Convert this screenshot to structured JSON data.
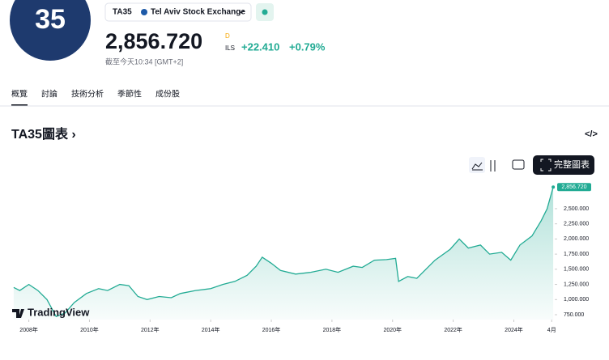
{
  "header": {
    "logo": "35",
    "symbol": "TA35",
    "exchange": "Tel Aviv Stock Exchange",
    "price": "2,856.720",
    "price_flag": "D",
    "currency": "ILS",
    "change": "+22.410",
    "change_pct": "+0.79%",
    "time": "截至今天10:34 [GMT+2]"
  },
  "tabs": [
    "概覽",
    "討論",
    "技術分析",
    "季節性",
    "成份股"
  ],
  "section_title": "TA35圖表 ›",
  "full_chart_button": "完整圖表",
  "watermark": "TradingView",
  "chart_data": {
    "type": "area",
    "color": "#22ab94",
    "x": [
      2007.5,
      2007.7,
      2008.0,
      2008.3,
      2008.6,
      2008.9,
      2009.2,
      2009.5,
      2009.9,
      2010.3,
      2010.6,
      2011.0,
      2011.3,
      2011.6,
      2011.9,
      2012.3,
      2012.7,
      2013.0,
      2013.5,
      2014.0,
      2014.4,
      2014.8,
      2015.2,
      2015.5,
      2015.7,
      2016.0,
      2016.3,
      2016.8,
      2017.3,
      2017.8,
      2018.2,
      2018.7,
      2019.0,
      2019.4,
      2019.8,
      2020.1,
      2020.2,
      2020.5,
      2020.8,
      2021.0,
      2021.4,
      2021.9,
      2022.2,
      2022.5,
      2022.9,
      2023.2,
      2023.6,
      2023.9,
      2024.2,
      2024.6,
      2024.9,
      2025.1,
      2025.3
    ],
    "series": [
      {
        "name": "TA35",
        "color": "#22ab94",
        "values": [
          1200,
          1150,
          1250,
          1150,
          1000,
          720,
          780,
          950,
          1100,
          1180,
          1150,
          1250,
          1230,
          1050,
          1000,
          1050,
          1030,
          1100,
          1150,
          1180,
          1250,
          1300,
          1400,
          1550,
          1700,
          1600,
          1480,
          1420,
          1450,
          1500,
          1450,
          1550,
          1530,
          1650,
          1660,
          1680,
          1300,
          1380,
          1350,
          1450,
          1650,
          1830,
          2000,
          1850,
          1900,
          1750,
          1780,
          1650,
          1900,
          2050,
          2300,
          2500,
          2856.72
        ]
      }
    ],
    "xlim": [
      2007.45,
      2025.35
    ],
    "xticks": [
      {
        "value": 2008,
        "label": "2008年"
      },
      {
        "value": 2010,
        "label": "2010年"
      },
      {
        "value": 2012,
        "label": "2012年"
      },
      {
        "value": 2014,
        "label": "2014年"
      },
      {
        "value": 2016,
        "label": "2016年"
      },
      {
        "value": 2018,
        "label": "2018年"
      },
      {
        "value": 2020,
        "label": "2020年"
      },
      {
        "value": 2022,
        "label": "2022年"
      },
      {
        "value": 2024,
        "label": "2024年"
      },
      {
        "value": 2025.25,
        "label": "4月"
      }
    ],
    "ylim": [
      670,
      2940
    ],
    "yticks": [
      {
        "value": 750,
        "label": "750.000"
      },
      {
        "value": 1000,
        "label": "1,000.000"
      },
      {
        "value": 1250,
        "label": "1,250.000"
      },
      {
        "value": 1500,
        "label": "1,500.000"
      },
      {
        "value": 1750,
        "label": "1,750.000"
      },
      {
        "value": 2000,
        "label": "2,000.000"
      },
      {
        "value": 2250,
        "label": "2,250.000"
      },
      {
        "value": 2500,
        "label": "2,500.000"
      }
    ]
  }
}
